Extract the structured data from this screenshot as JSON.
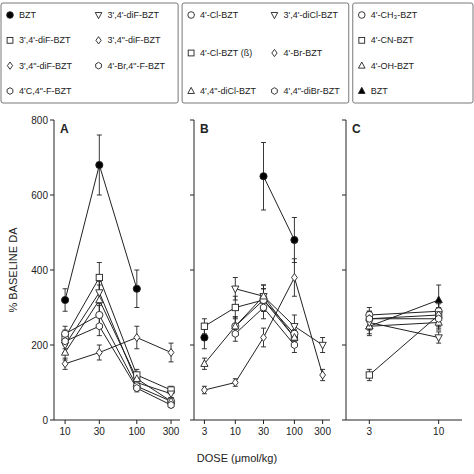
{
  "chart_data": {
    "type": "line",
    "xlabel": "DOSE (μmol/kg)",
    "log": "x",
    "panels": [
      {
        "title": "A",
        "ylabel": "% BASELINE DA",
        "x": [
          10,
          30,
          100,
          300
        ],
        "series": [
          {
            "marker": "circle",
            "color": "black",
            "values": [
              320,
              680,
              350,
              null
            ],
            "errors": [
              30,
              80,
              50,
              null
            ]
          },
          {
            "marker": "square",
            "color": "white",
            "values": [
              220,
              380,
              120,
              80
            ],
            "errors": [
              20,
              40,
              15,
              10
            ]
          },
          {
            "marker": "triangle-down",
            "color": "white",
            "values": [
              200,
              340,
              100,
              70
            ],
            "errors": [
              20,
              30,
              10,
              10
            ]
          },
          {
            "marker": "circle",
            "color": "white",
            "values": [
              230,
              280,
              90,
              50
            ],
            "errors": [
              20,
              25,
              10,
              8
            ]
          },
          {
            "marker": "triangle-up",
            "color": "white",
            "values": [
              180,
              320,
              110,
              50
            ],
            "errors": [
              20,
              40,
              15,
              10
            ]
          },
          {
            "marker": "diamond",
            "color": "white",
            "values": [
              150,
              180,
              220,
              180
            ],
            "errors": [
              15,
              20,
              30,
              25
            ]
          },
          {
            "marker": "hexagon",
            "color": "white",
            "values": [
              210,
              250,
              85,
              40
            ],
            "errors": [
              20,
              25,
              10,
              7
            ]
          }
        ],
        "xlim": [
          7,
          400
        ],
        "ylim": [
          0,
          800
        ],
        "xticks": [
          10,
          30,
          100,
          300
        ],
        "yticks": [
          0,
          200,
          400,
          600,
          800
        ]
      },
      {
        "title": "B",
        "x": [
          3,
          10,
          30,
          100,
          300
        ],
        "series": [
          {
            "marker": "circle",
            "color": "black",
            "values": [
              220,
              null,
              650,
              480,
              null
            ],
            "errors": [
              30,
              null,
              90,
              60,
              null
            ]
          },
          {
            "marker": "square",
            "color": "white",
            "values": [
              250,
              300,
              320,
              220,
              null
            ],
            "errors": [
              20,
              30,
              30,
              20,
              null
            ]
          },
          {
            "marker": "triangle-down",
            "color": "white",
            "values": [
              null,
              350,
              330,
              250,
              200
            ],
            "errors": [
              null,
              30,
              30,
              30,
              20
            ]
          },
          {
            "marker": "circle",
            "color": "white",
            "values": [
              null,
              250,
              320,
              230,
              null
            ],
            "errors": [
              null,
              25,
              30,
              20,
              null
            ]
          },
          {
            "marker": "triangle-up",
            "color": "white",
            "values": [
              150,
              250,
              330,
              220,
              null
            ],
            "errors": [
              15,
              25,
              30,
              20,
              null
            ]
          },
          {
            "marker": "diamond",
            "color": "white",
            "values": [
              80,
              100,
              220,
              380,
              120
            ],
            "errors": [
              10,
              10,
              25,
              50,
              15
            ]
          },
          {
            "marker": "hexagon",
            "color": "white",
            "values": [
              null,
              230,
              300,
              200,
              null
            ],
            "errors": [
              null,
              20,
              30,
              20,
              null
            ]
          }
        ],
        "xlim": [
          2,
          400
        ],
        "ylim": [
          0,
          800
        ],
        "xticks": [
          3,
          10,
          30,
          100,
          300
        ],
        "yticks": [
          0,
          200,
          400,
          600,
          800
        ],
        "tick_labels": "x"
      },
      {
        "title": "C",
        "x": [
          3,
          10
        ],
        "series": [
          {
            "marker": "triangle-up",
            "color": "black",
            "values": [
              250,
              320
            ],
            "errors": [
              25,
              40
            ]
          },
          {
            "marker": "circle",
            "color": "white",
            "values": [
              280,
              290
            ],
            "errors": [
              20,
              20
            ]
          },
          {
            "marker": "square",
            "color": "white",
            "values": [
              120,
              280
            ],
            "errors": [
              15,
              35
            ]
          },
          {
            "marker": "triangle-up",
            "color": "white",
            "values": [
              250,
              260
            ],
            "errors": [
              20,
              20
            ]
          },
          {
            "marker": "diamond",
            "color": "white",
            "values": [
              270,
              280
            ],
            "errors": [
              20,
              20
            ]
          },
          {
            "marker": "triangle-down",
            "color": "white",
            "values": [
              260,
              220
            ],
            "errors": [
              20,
              15
            ]
          },
          {
            "marker": "hexagon",
            "color": "white",
            "values": [
              270,
              270
            ],
            "errors": [
              20,
              20
            ]
          }
        ],
        "xlim": [
          2,
          15
        ],
        "ylim": [
          0,
          800
        ],
        "xticks": [
          3,
          10
        ],
        "yticks": [
          0,
          200,
          400,
          600,
          800
        ],
        "tick_labels": "x"
      }
    ],
    "legend_boxes": [
      {
        "columns": [
          [
            {
              "marker": "circle",
              "color": "black",
              "label": "BZT"
            },
            {
              "marker": "square",
              "color": "white",
              "label": "3',4'-diF-BZT"
            },
            {
              "marker": "diamond",
              "color": "white",
              "label": "3',4\"-diF-BZT"
            },
            {
              "marker": "hexagon",
              "color": "white",
              "label": "4'C,4\"-F-BZT"
            }
          ],
          [
            {
              "marker": "triangle-down",
              "color": "white",
              "label": "3',4'-diF-BZT"
            },
            {
              "marker": "diamond",
              "color": "white",
              "label": "3',4\"-diF-BZT"
            },
            {
              "marker": "hexagon",
              "color": "white",
              "label": "4'-Br,4\"-F-BZT"
            }
          ]
        ]
      },
      {
        "columns": [
          [
            {
              "marker": "circle",
              "color": "white",
              "label": "4'-Cl-BZT"
            },
            {
              "marker": "square",
              "color": "white",
              "label": "4'-Cl-BZT (ß)"
            },
            {
              "marker": "triangle-up",
              "color": "white",
              "label": "4',4\"-diCl-BZT"
            }
          ],
          [
            {
              "marker": "triangle-down",
              "color": "white",
              "label": "3',4'-diCl-BZT"
            },
            {
              "marker": "diamond",
              "color": "white",
              "label": "4'-Br-BZT"
            },
            {
              "marker": "hexagon",
              "color": "white",
              "label": "4',4\"-diBr-BZT"
            }
          ]
        ]
      },
      {
        "columns": [
          [
            {
              "marker": "circle",
              "color": "white",
              "label": "4'-CH₃-BZT"
            },
            {
              "marker": "square",
              "color": "white",
              "label": "4'-CN-BZT"
            },
            {
              "marker": "triangle-up",
              "color": "white",
              "label": "4'-OH-BZT"
            },
            {
              "marker": "triangle-up",
              "color": "black",
              "label": "BZT"
            }
          ]
        ]
      }
    ]
  }
}
